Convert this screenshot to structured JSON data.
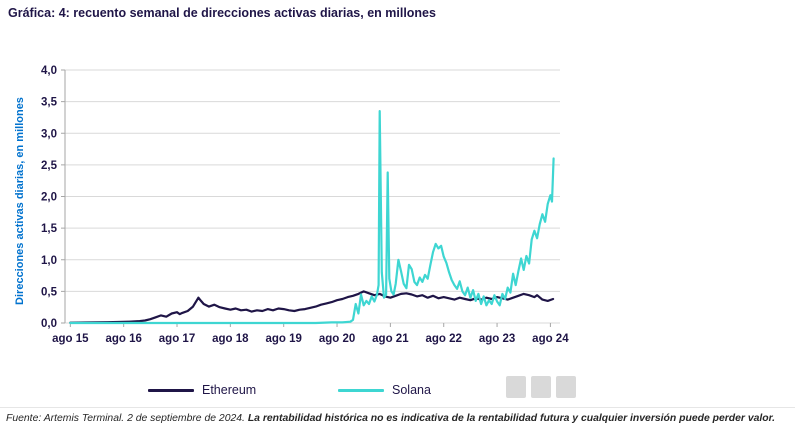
{
  "title": "Gráfica: 4: recuento semanal de direcciones activas diarias, en millones",
  "footer": {
    "source": "Fuente: Artemis Terminal. 2 de septiembre de 2024. ",
    "disclaimer": "La rentabilidad histórica no es indicativa de la rentabilidad futura y cualquier inversión puede perder valor."
  },
  "colors": {
    "ethereum": "#1f1547",
    "solana": "#3ed6d2",
    "axis_label_blue": "#0072ce",
    "tick_text": "#1f1547",
    "gridline": "#d9d9d9",
    "axis_line": "#a6a6a6"
  },
  "chart_data": {
    "type": "line",
    "title": "Gráfica: 4: recuento semanal de direcciones activas diarias, en millones",
    "xlabel": "",
    "ylabel": "Direcciones activas diarias, en millones",
    "ylim": [
      0,
      4
    ],
    "ytick_step": 0.5,
    "yticks_labels": [
      "0,0",
      "0,5",
      "1,0",
      "1,5",
      "2,0",
      "2,5",
      "3,0",
      "3,5",
      "4,0"
    ],
    "xlim": [
      2015.5,
      2024.78
    ],
    "xticks": [
      {
        "x": 2015.6,
        "label": "ago 15"
      },
      {
        "x": 2016.6,
        "label": "ago 16"
      },
      {
        "x": 2017.6,
        "label": "ago 17"
      },
      {
        "x": 2018.6,
        "label": "ago 18"
      },
      {
        "x": 2019.6,
        "label": "ago 19"
      },
      {
        "x": 2020.6,
        "label": "ago 20"
      },
      {
        "x": 2021.6,
        "label": "ago 21"
      },
      {
        "x": 2022.6,
        "label": "ago 22"
      },
      {
        "x": 2023.6,
        "label": "ago 23"
      },
      {
        "x": 2024.6,
        "label": "ago 24"
      }
    ],
    "grid": "horizontal",
    "legend_position": "bottom",
    "series": [
      {
        "name": "Ethereum",
        "color": "#1f1547",
        "points": [
          [
            2015.6,
            0.005
          ],
          [
            2015.9,
            0.008
          ],
          [
            2016.1,
            0.01
          ],
          [
            2016.3,
            0.013
          ],
          [
            2016.5,
            0.016
          ],
          [
            2016.7,
            0.02
          ],
          [
            2016.9,
            0.03
          ],
          [
            2017.0,
            0.04
          ],
          [
            2017.1,
            0.06
          ],
          [
            2017.2,
            0.09
          ],
          [
            2017.3,
            0.12
          ],
          [
            2017.4,
            0.1
          ],
          [
            2017.5,
            0.15
          ],
          [
            2017.6,
            0.17
          ],
          [
            2017.65,
            0.14
          ],
          [
            2017.7,
            0.16
          ],
          [
            2017.8,
            0.19
          ],
          [
            2017.9,
            0.26
          ],
          [
            2018.0,
            0.4
          ],
          [
            2018.05,
            0.35
          ],
          [
            2018.1,
            0.3
          ],
          [
            2018.2,
            0.26
          ],
          [
            2018.3,
            0.29
          ],
          [
            2018.4,
            0.25
          ],
          [
            2018.5,
            0.23
          ],
          [
            2018.6,
            0.21
          ],
          [
            2018.7,
            0.23
          ],
          [
            2018.8,
            0.2
          ],
          [
            2018.9,
            0.21
          ],
          [
            2019.0,
            0.18
          ],
          [
            2019.1,
            0.2
          ],
          [
            2019.2,
            0.19
          ],
          [
            2019.3,
            0.22
          ],
          [
            2019.4,
            0.2
          ],
          [
            2019.5,
            0.23
          ],
          [
            2019.6,
            0.22
          ],
          [
            2019.7,
            0.2
          ],
          [
            2019.8,
            0.19
          ],
          [
            2019.9,
            0.21
          ],
          [
            2020.0,
            0.22
          ],
          [
            2020.1,
            0.24
          ],
          [
            2020.2,
            0.26
          ],
          [
            2020.3,
            0.29
          ],
          [
            2020.4,
            0.31
          ],
          [
            2020.5,
            0.33
          ],
          [
            2020.6,
            0.36
          ],
          [
            2020.7,
            0.38
          ],
          [
            2020.8,
            0.41
          ],
          [
            2020.9,
            0.43
          ],
          [
            2021.0,
            0.46
          ],
          [
            2021.1,
            0.5
          ],
          [
            2021.2,
            0.47
          ],
          [
            2021.3,
            0.44
          ],
          [
            2021.4,
            0.46
          ],
          [
            2021.5,
            0.42
          ],
          [
            2021.6,
            0.4
          ],
          [
            2021.7,
            0.43
          ],
          [
            2021.8,
            0.46
          ],
          [
            2021.9,
            0.47
          ],
          [
            2022.0,
            0.45
          ],
          [
            2022.1,
            0.42
          ],
          [
            2022.2,
            0.44
          ],
          [
            2022.3,
            0.4
          ],
          [
            2022.4,
            0.43
          ],
          [
            2022.5,
            0.39
          ],
          [
            2022.6,
            0.41
          ],
          [
            2022.7,
            0.39
          ],
          [
            2022.8,
            0.37
          ],
          [
            2022.9,
            0.4
          ],
          [
            2023.0,
            0.38
          ],
          [
            2023.1,
            0.36
          ],
          [
            2023.2,
            0.39
          ],
          [
            2023.3,
            0.37
          ],
          [
            2023.4,
            0.4
          ],
          [
            2023.5,
            0.38
          ],
          [
            2023.6,
            0.41
          ],
          [
            2023.7,
            0.39
          ],
          [
            2023.8,
            0.37
          ],
          [
            2023.9,
            0.4
          ],
          [
            2024.0,
            0.43
          ],
          [
            2024.1,
            0.46
          ],
          [
            2024.2,
            0.44
          ],
          [
            2024.3,
            0.41
          ],
          [
            2024.35,
            0.44
          ],
          [
            2024.45,
            0.37
          ],
          [
            2024.55,
            0.35
          ],
          [
            2024.65,
            0.38
          ]
        ]
      },
      {
        "name": "Solana",
        "color": "#3ed6d2",
        "points": [
          [
            2015.6,
            0
          ],
          [
            2017.0,
            0
          ],
          [
            2018.0,
            0
          ],
          [
            2019.0,
            0
          ],
          [
            2019.8,
            0
          ],
          [
            2020.2,
            0
          ],
          [
            2020.5,
            0.01
          ],
          [
            2020.7,
            0.01
          ],
          [
            2020.85,
            0.02
          ],
          [
            2020.9,
            0.05
          ],
          [
            2020.95,
            0.3
          ],
          [
            2021.0,
            0.15
          ],
          [
            2021.05,
            0.45
          ],
          [
            2021.1,
            0.28
          ],
          [
            2021.15,
            0.35
          ],
          [
            2021.2,
            0.3
          ],
          [
            2021.25,
            0.42
          ],
          [
            2021.3,
            0.34
          ],
          [
            2021.35,
            0.45
          ],
          [
            2021.38,
            0.6
          ],
          [
            2021.4,
            3.35
          ],
          [
            2021.44,
            0.8
          ],
          [
            2021.48,
            0.4
          ],
          [
            2021.52,
            0.45
          ],
          [
            2021.55,
            2.38
          ],
          [
            2021.58,
            0.7
          ],
          [
            2021.62,
            0.5
          ],
          [
            2021.66,
            0.45
          ],
          [
            2021.7,
            0.62
          ],
          [
            2021.75,
            1.0
          ],
          [
            2021.8,
            0.82
          ],
          [
            2021.85,
            0.62
          ],
          [
            2021.9,
            0.55
          ],
          [
            2021.95,
            0.92
          ],
          [
            2022.0,
            0.85
          ],
          [
            2022.05,
            0.65
          ],
          [
            2022.1,
            0.6
          ],
          [
            2022.15,
            0.72
          ],
          [
            2022.2,
            0.65
          ],
          [
            2022.25,
            0.76
          ],
          [
            2022.3,
            0.7
          ],
          [
            2022.35,
            0.92
          ],
          [
            2022.4,
            1.12
          ],
          [
            2022.45,
            1.25
          ],
          [
            2022.5,
            1.18
          ],
          [
            2022.55,
            1.22
          ],
          [
            2022.6,
            1.05
          ],
          [
            2022.65,
            0.95
          ],
          [
            2022.7,
            0.8
          ],
          [
            2022.75,
            0.68
          ],
          [
            2022.8,
            0.6
          ],
          [
            2022.85,
            0.54
          ],
          [
            2022.9,
            0.66
          ],
          [
            2022.95,
            0.5
          ],
          [
            2023.0,
            0.44
          ],
          [
            2023.05,
            0.56
          ],
          [
            2023.1,
            0.4
          ],
          [
            2023.15,
            0.52
          ],
          [
            2023.2,
            0.35
          ],
          [
            2023.25,
            0.46
          ],
          [
            2023.3,
            0.3
          ],
          [
            2023.35,
            0.42
          ],
          [
            2023.4,
            0.28
          ],
          [
            2023.45,
            0.36
          ],
          [
            2023.5,
            0.3
          ],
          [
            2023.55,
            0.44
          ],
          [
            2023.6,
            0.34
          ],
          [
            2023.65,
            0.28
          ],
          [
            2023.7,
            0.46
          ],
          [
            2023.75,
            0.38
          ],
          [
            2023.8,
            0.56
          ],
          [
            2023.85,
            0.48
          ],
          [
            2023.9,
            0.78
          ],
          [
            2023.95,
            0.6
          ],
          [
            2024.0,
            0.82
          ],
          [
            2024.05,
            1.02
          ],
          [
            2024.1,
            0.84
          ],
          [
            2024.15,
            1.06
          ],
          [
            2024.2,
            0.94
          ],
          [
            2024.25,
            1.32
          ],
          [
            2024.3,
            1.46
          ],
          [
            2024.35,
            1.34
          ],
          [
            2024.4,
            1.56
          ],
          [
            2024.45,
            1.72
          ],
          [
            2024.5,
            1.6
          ],
          [
            2024.55,
            1.88
          ],
          [
            2024.6,
            2.02
          ],
          [
            2024.63,
            1.92
          ],
          [
            2024.66,
            2.6
          ]
        ]
      }
    ]
  }
}
